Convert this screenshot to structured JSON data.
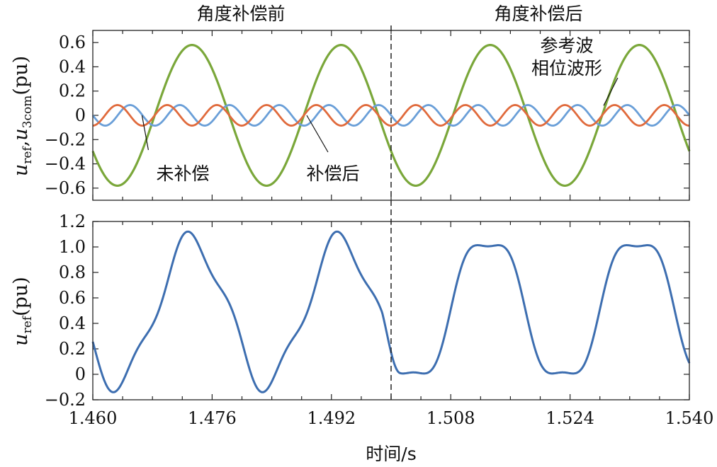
{
  "chart_data": [
    {
      "type": "line",
      "panel": "top",
      "section_labels": [
        "角度补偿前",
        "角度补偿后"
      ],
      "ylabel": {
        "main1": "u",
        "sub1": "ref",
        "sep": ",",
        "main2": "u",
        "sub2": "3com",
        "unit": "(pu)"
      },
      "xlim": [
        1.46,
        1.54
      ],
      "ylim": [
        -0.7,
        0.7
      ],
      "yticks": [
        -0.6,
        -0.4,
        -0.2,
        0,
        0.2,
        0.4,
        0.6
      ],
      "ytick_labels": [
        "−0.6",
        "−0.4",
        "−0.2",
        "0",
        "0.2",
        "0.4",
        "0.6"
      ],
      "divider_x": 1.5,
      "annotations": [
        {
          "text": "未补偿",
          "point": [
            1.4665,
            0.0
          ]
        },
        {
          "text": "补偿后",
          "point": [
            1.4885,
            0.0
          ]
        },
        {
          "text_lines": [
            "参考波",
            "相位波形"
          ],
          "point": [
            1.5285,
            0.08
          ]
        }
      ],
      "series": [
        {
          "color": "#7aa73a",
          "amplitude": 0.58,
          "period": 0.02,
          "peaks": [
            1.4733,
            1.4933,
            1.5133,
            1.5333
          ]
        },
        {
          "color": "#6a9fd8",
          "amplitude": 0.085,
          "period": 0.006667,
          "peaks": [
            1.465,
            1.4717,
            1.4783,
            1.485,
            1.4917,
            1.4983,
            1.505,
            1.5117,
            1.5183,
            1.525,
            1.5317,
            1.5383
          ]
        },
        {
          "color": "#e06a3c",
          "amplitude": 0.085,
          "period": 0.006667,
          "peaks": [
            1.4633,
            1.47,
            1.4767,
            1.4833,
            1.49,
            1.4967,
            1.5033,
            1.51,
            1.5167,
            1.5233,
            1.53,
            1.5367
          ]
        }
      ]
    },
    {
      "type": "line",
      "panel": "bottom",
      "ylabel": {
        "main": "u",
        "sub": "ref",
        "unit": "(pu)"
      },
      "xlabel": "时间/s",
      "xlim": [
        1.46,
        1.54
      ],
      "ylim": [
        -0.2,
        1.2
      ],
      "yticks": [
        -0.2,
        0,
        0.2,
        0.4,
        0.6,
        0.8,
        1.0,
        1.2
      ],
      "ytick_labels": [
        "−0.2",
        "0",
        "0.2",
        "0.4",
        "0.6",
        "0.8",
        "1.0",
        "1.2"
      ],
      "xticks": [
        1.46,
        1.476,
        1.492,
        1.508,
        1.524,
        1.54
      ],
      "xtick_labels": [
        "1.460",
        "1.476",
        "1.492",
        "1.508",
        "1.524",
        "1.540"
      ],
      "divider_x": 1.5,
      "series": [
        {
          "color": "#3d6eb0",
          "before_compensation": {
            "max": 1.07,
            "min": -0.09,
            "peaks_x": [
              1.4733,
              1.4933
            ],
            "troughs_x": [
              1.4633,
              1.4833
            ]
          },
          "after_compensation": {
            "max": 1.01,
            "min": 0.01,
            "plateaus": [
              [
                1.5105,
                1.5155
              ],
              [
                1.5305,
                1.5355
              ]
            ],
            "floors": [
              [
                1.5005,
                1.5055
              ],
              [
                1.5205,
                1.5255
              ]
            ]
          }
        }
      ]
    }
  ]
}
